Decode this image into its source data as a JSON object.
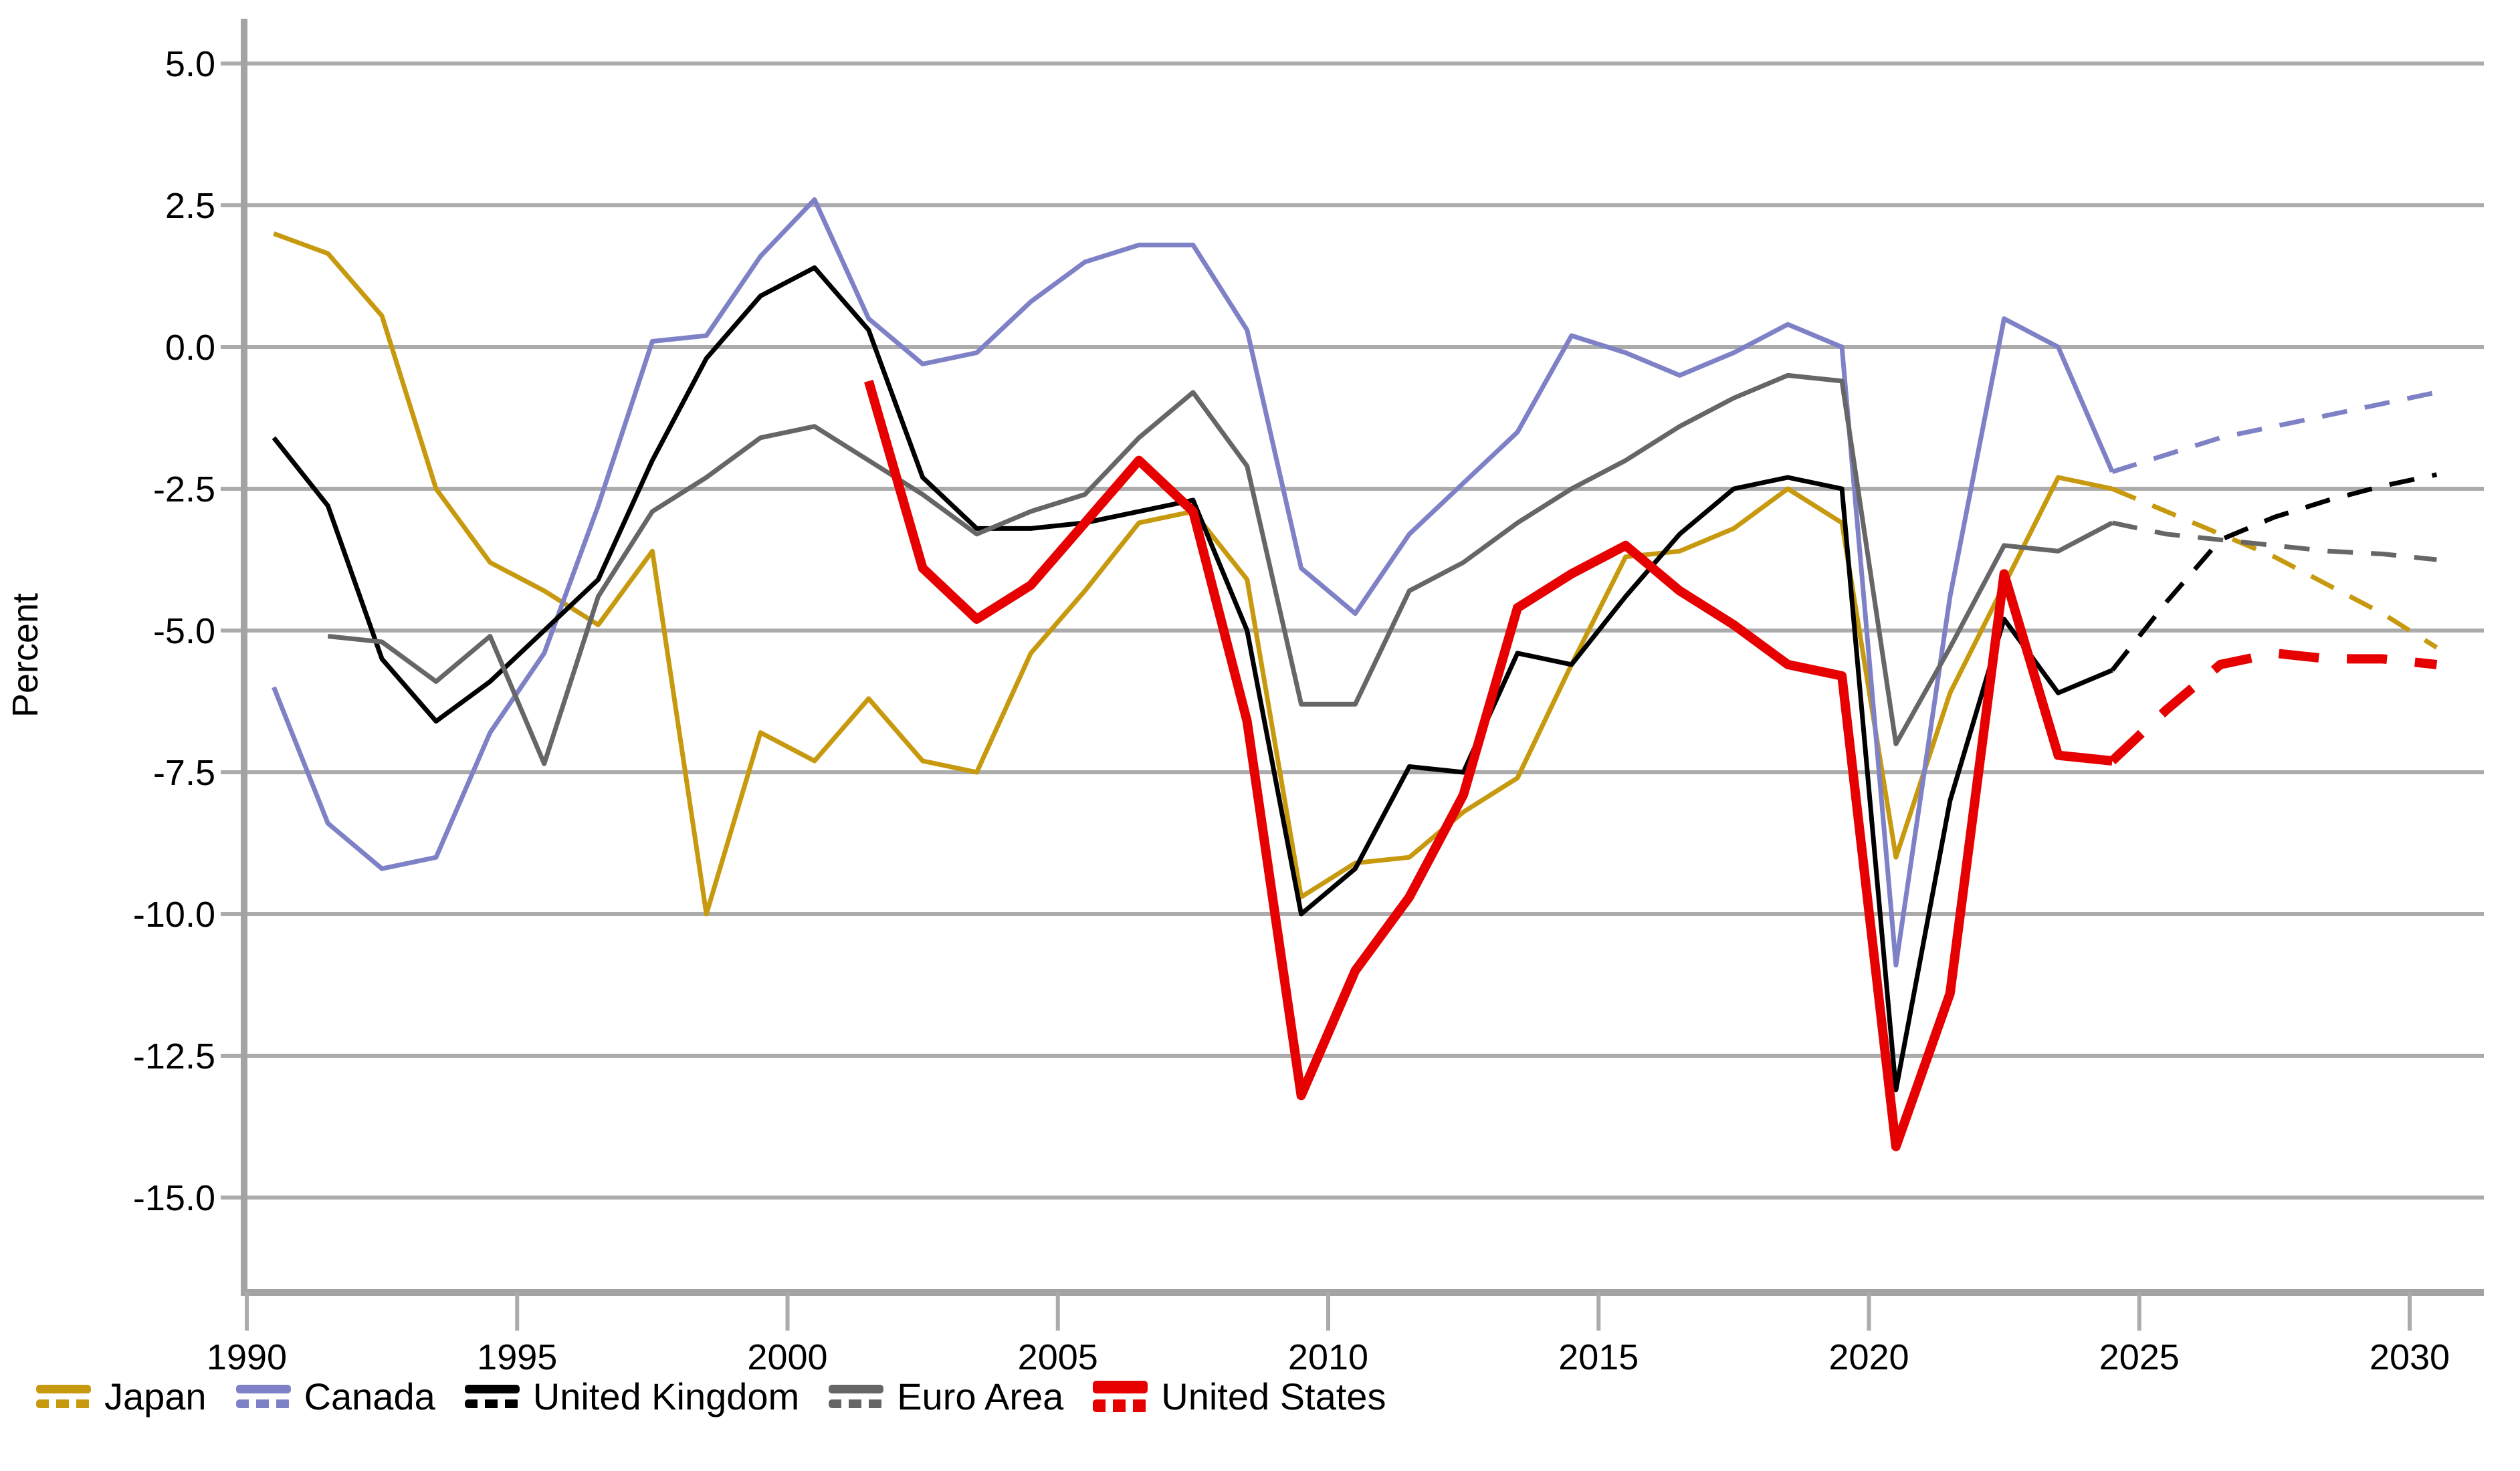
{
  "chart_data": {
    "type": "line",
    "title": "",
    "ylabel": "Percent",
    "xlabel": "",
    "grid": "horizontal",
    "legend_position": "bottom-left",
    "ylim": [
      -16.7,
      5.8
    ],
    "xlim": [
      1990,
      2031.4
    ],
    "y_ticks": [
      5.0,
      2.5,
      0.0,
      -2.5,
      -5.0,
      -7.5,
      -10.0,
      -12.5,
      -15.0
    ],
    "y_tick_labels": [
      "5.0",
      "2.5",
      "0.0",
      "-2.5",
      "-5.0",
      "-7.5",
      "-10.0",
      "-12.5",
      "-15.0"
    ],
    "x_ticks": [
      1990,
      1995,
      2000,
      2005,
      2010,
      2015,
      2020,
      2025,
      2030
    ],
    "x_tick_labels": [
      "1990",
      "1995",
      "2000",
      "2005",
      "2010",
      "2015",
      "2020",
      "2025",
      "2030"
    ],
    "projection_start_year": 2024,
    "style_note": "solid lines = history through 2024, dashed lines = projections 2025-2030",
    "years": [
      1990,
      1991,
      1992,
      1993,
      1994,
      1995,
      1996,
      1997,
      1998,
      1999,
      2000,
      2001,
      2002,
      2003,
      2004,
      2005,
      2006,
      2007,
      2008,
      2009,
      2010,
      2011,
      2012,
      2013,
      2014,
      2015,
      2016,
      2017,
      2018,
      2019,
      2020,
      2021,
      2022,
      2023,
      2024,
      2025,
      2026,
      2027,
      2028,
      2029,
      2030
    ],
    "series": [
      {
        "name": "Japan",
        "color": "#C7990E",
        "width": 7,
        "values": [
          2.0,
          1.65,
          0.55,
          -2.5,
          -3.8,
          -4.3,
          -4.9,
          -3.6,
          -10.0,
          -6.8,
          -7.3,
          -6.2,
          -7.3,
          -7.5,
          -5.4,
          -4.3,
          -3.1,
          -2.9,
          -4.1,
          -9.7,
          -9.1,
          -9.0,
          -8.2,
          -7.6,
          -5.6,
          -3.7,
          -3.6,
          -3.2,
          -2.5,
          -3.1,
          -9.0,
          -6.1,
          -4.2,
          -2.3,
          -2.5,
          -2.9,
          -3.3,
          -3.7,
          -4.2,
          -4.7,
          -5.3
        ]
      },
      {
        "name": "Canada",
        "color": "#7E81C6",
        "width": 7,
        "values": [
          -6.0,
          -8.4,
          -9.2,
          -9.0,
          -6.8,
          -5.4,
          -2.8,
          0.1,
          0.2,
          1.6,
          2.6,
          0.5,
          -0.3,
          -0.1,
          0.8,
          1.5,
          1.8,
          1.8,
          0.3,
          -3.9,
          -4.7,
          -3.3,
          -2.4,
          -1.5,
          0.2,
          -0.1,
          -0.5,
          -0.1,
          0.4,
          0.0,
          -10.9,
          -4.4,
          0.5,
          0.0,
          -2.2,
          -1.9,
          -1.6,
          -1.4,
          -1.2,
          -1.0,
          -0.8
        ]
      },
      {
        "name": "United Kingdom",
        "color": "#000000",
        "width": 7,
        "values": [
          -1.6,
          -2.8,
          -5.5,
          -6.6,
          -5.9,
          -5.0,
          -4.1,
          -2.0,
          -0.2,
          0.9,
          1.4,
          0.3,
          -2.3,
          -3.2,
          -3.2,
          -3.1,
          -2.9,
          -2.7,
          -5.0,
          -10.0,
          -9.2,
          -7.4,
          -7.5,
          -5.4,
          -5.6,
          -4.4,
          -3.3,
          -2.5,
          -2.3,
          -2.5,
          -13.1,
          -8.0,
          -4.8,
          -6.1,
          -5.7,
          -4.5,
          -3.4,
          -3.0,
          -2.7,
          -2.45,
          -2.25
        ]
      },
      {
        "name": "Euro Area",
        "color": "#666666",
        "width": 7,
        "values": [
          null,
          -5.1,
          -5.2,
          -5.9,
          -5.1,
          -7.35,
          -4.4,
          -2.9,
          -2.3,
          -1.6,
          -1.4,
          -2.0,
          -2.6,
          -3.3,
          -2.9,
          -2.6,
          -1.6,
          -0.8,
          -2.1,
          -6.3,
          -6.3,
          -4.3,
          -3.8,
          -3.1,
          -2.5,
          -2.0,
          -1.4,
          -0.9,
          -0.5,
          -0.6,
          -7.0,
          -5.3,
          -3.5,
          -3.6,
          -3.1,
          -3.3,
          -3.4,
          -3.5,
          -3.6,
          -3.65,
          -3.75
        ]
      },
      {
        "name": "United States",
        "color": "#E60000",
        "width": 14,
        "values": [
          null,
          null,
          null,
          null,
          null,
          null,
          null,
          null,
          null,
          null,
          null,
          -0.6,
          -3.9,
          -4.8,
          -4.2,
          -3.1,
          -2.0,
          -2.9,
          -6.6,
          -13.2,
          -11.0,
          -9.7,
          -7.9,
          -4.6,
          -4.0,
          -3.5,
          -4.3,
          -4.9,
          -5.6,
          -5.8,
          -14.1,
          -11.4,
          -4.0,
          -7.2,
          -7.3,
          -6.4,
          -5.6,
          -5.4,
          -5.5,
          -5.5,
          -5.6
        ]
      }
    ],
    "colors": {
      "gridline": "#ABABAB",
      "axis": "#A3A3A3",
      "tick_text": "#000000"
    }
  }
}
